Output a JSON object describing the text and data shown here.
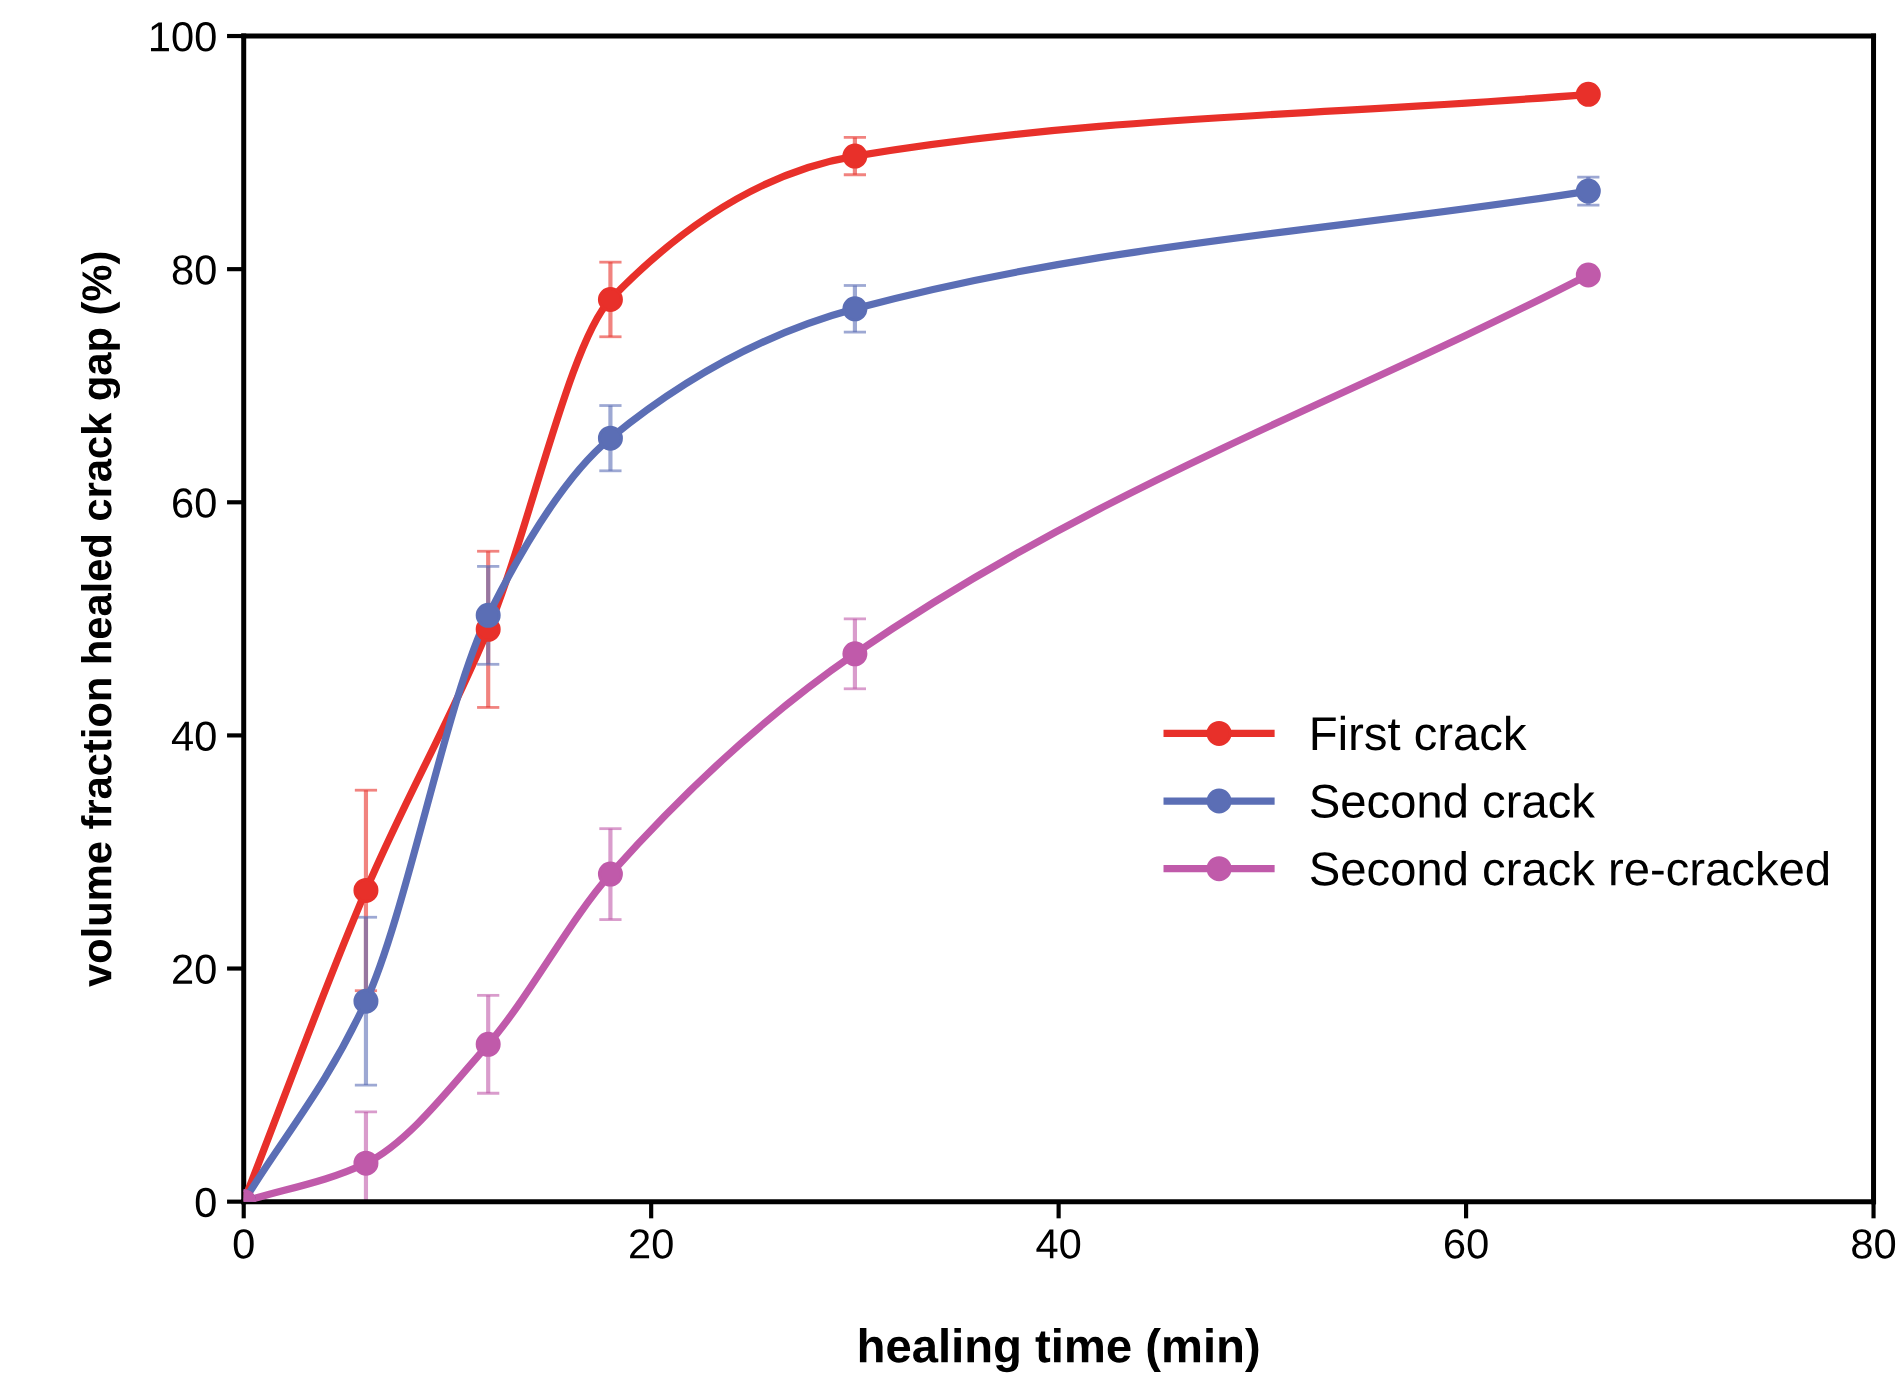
{
  "chart_data": {
    "type": "line",
    "xlabel": "healing time (min)",
    "ylabel": "volume fraction healed crack gap (%)",
    "x": [
      0,
      6,
      12,
      18,
      30,
      66
    ],
    "series": [
      {
        "name": "First crack",
        "color": "#e8302a",
        "values": [
          0,
          26.7,
          49.1,
          77.4,
          89.7,
          95.0
        ],
        "errors": [
          null,
          8.6,
          6.7,
          3.2,
          1.6,
          null
        ]
      },
      {
        "name": "Second crack",
        "color": "#5b6eb5",
        "values": [
          0,
          17.2,
          50.3,
          65.5,
          76.6,
          86.7
        ],
        "errors": [
          null,
          7.2,
          4.2,
          2.8,
          2.0,
          1.2
        ]
      },
      {
        "name": "Second crack re-cracked",
        "color": "#c05aaa",
        "values": [
          0,
          3.3,
          13.5,
          28.1,
          47.0,
          79.5
        ],
        "errors": [
          null,
          4.4,
          4.2,
          3.9,
          3.0,
          null
        ]
      }
    ],
    "xlim": [
      0,
      80
    ],
    "xticks": [
      0,
      20,
      40,
      60,
      80
    ],
    "ylim": [
      0,
      100
    ],
    "yticks": [
      0,
      20,
      40,
      60,
      80,
      100
    ],
    "grid": false,
    "legend": "right",
    "marker": "circle",
    "line_style": "solid"
  }
}
